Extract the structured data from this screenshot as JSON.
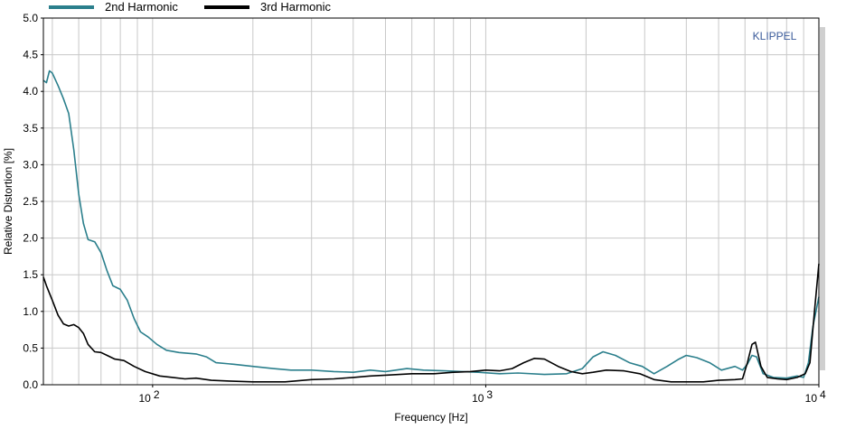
{
  "chart_data": {
    "type": "line",
    "title": "",
    "xlabel": "Frequency  [Hz]",
    "ylabel": "Relative Distortion  [%]",
    "x_scale": "log",
    "xlim": [
      47,
      10000
    ],
    "ylim": [
      0,
      5
    ],
    "grid": true,
    "legend_position": "top-left",
    "watermark": "KLIPPEL",
    "watermark_color": "#3A5A9A",
    "y_ticks": [
      "0.0",
      "0.5",
      "1.0",
      "1.5",
      "2.0",
      "2.5",
      "3.0",
      "3.5",
      "4.0",
      "4.5",
      "5.0"
    ],
    "x_ticks": [
      {
        "base": "10",
        "exp": "2"
      },
      {
        "base": "10",
        "exp": "3"
      },
      {
        "base": "10",
        "exp": "4"
      }
    ],
    "series": [
      {
        "name": "2nd Harmonic",
        "color": "#2B7F8C",
        "points": [
          [
            47,
            4.15
          ],
          [
            48,
            4.12
          ],
          [
            49,
            4.28
          ],
          [
            50,
            4.25
          ],
          [
            52,
            4.08
          ],
          [
            54,
            3.9
          ],
          [
            56,
            3.7
          ],
          [
            58,
            3.2
          ],
          [
            60,
            2.6
          ],
          [
            62,
            2.2
          ],
          [
            64,
            1.98
          ],
          [
            67,
            1.95
          ],
          [
            70,
            1.8
          ],
          [
            73,
            1.55
          ],
          [
            76,
            1.35
          ],
          [
            80,
            1.3
          ],
          [
            84,
            1.15
          ],
          [
            88,
            0.9
          ],
          [
            92,
            0.72
          ],
          [
            97,
            0.65
          ],
          [
            103,
            0.55
          ],
          [
            110,
            0.47
          ],
          [
            120,
            0.44
          ],
          [
            135,
            0.42
          ],
          [
            145,
            0.38
          ],
          [
            155,
            0.3
          ],
          [
            175,
            0.28
          ],
          [
            200,
            0.25
          ],
          [
            230,
            0.22
          ],
          [
            260,
            0.2
          ],
          [
            300,
            0.2
          ],
          [
            350,
            0.18
          ],
          [
            400,
            0.17
          ],
          [
            450,
            0.2
          ],
          [
            500,
            0.18
          ],
          [
            580,
            0.22
          ],
          [
            650,
            0.2
          ],
          [
            750,
            0.19
          ],
          [
            850,
            0.18
          ],
          [
            950,
            0.17
          ],
          [
            1100,
            0.15
          ],
          [
            1250,
            0.16
          ],
          [
            1500,
            0.14
          ],
          [
            1750,
            0.15
          ],
          [
            1950,
            0.22
          ],
          [
            2100,
            0.38
          ],
          [
            2250,
            0.45
          ],
          [
            2450,
            0.4
          ],
          [
            2700,
            0.3
          ],
          [
            2950,
            0.25
          ],
          [
            3200,
            0.15
          ],
          [
            3500,
            0.25
          ],
          [
            3800,
            0.35
          ],
          [
            4000,
            0.4
          ],
          [
            4300,
            0.37
          ],
          [
            4700,
            0.3
          ],
          [
            5100,
            0.2
          ],
          [
            5600,
            0.25
          ],
          [
            5900,
            0.2
          ],
          [
            6100,
            0.28
          ],
          [
            6300,
            0.4
          ],
          [
            6500,
            0.38
          ],
          [
            6800,
            0.15
          ],
          [
            7300,
            0.1
          ],
          [
            8000,
            0.09
          ],
          [
            8600,
            0.12
          ],
          [
            9000,
            0.1
          ],
          [
            9300,
            0.3
          ],
          [
            9600,
            0.8
          ],
          [
            10000,
            1.2
          ]
        ]
      },
      {
        "name": "3rd Harmonic",
        "color": "#000000",
        "points": [
          [
            47,
            1.47
          ],
          [
            48,
            1.35
          ],
          [
            50,
            1.15
          ],
          [
            52,
            0.95
          ],
          [
            54,
            0.83
          ],
          [
            56,
            0.8
          ],
          [
            58,
            0.82
          ],
          [
            60,
            0.78
          ],
          [
            62,
            0.7
          ],
          [
            64,
            0.55
          ],
          [
            67,
            0.45
          ],
          [
            70,
            0.44
          ],
          [
            73,
            0.4
          ],
          [
            77,
            0.35
          ],
          [
            82,
            0.33
          ],
          [
            88,
            0.25
          ],
          [
            95,
            0.18
          ],
          [
            105,
            0.12
          ],
          [
            115,
            0.1
          ],
          [
            125,
            0.08
          ],
          [
            135,
            0.09
          ],
          [
            150,
            0.06
          ],
          [
            170,
            0.05
          ],
          [
            200,
            0.04
          ],
          [
            250,
            0.04
          ],
          [
            300,
            0.07
          ],
          [
            350,
            0.08
          ],
          [
            400,
            0.1
          ],
          [
            450,
            0.12
          ],
          [
            500,
            0.13
          ],
          [
            600,
            0.15
          ],
          [
            700,
            0.15
          ],
          [
            800,
            0.17
          ],
          [
            900,
            0.18
          ],
          [
            1000,
            0.2
          ],
          [
            1100,
            0.19
          ],
          [
            1200,
            0.22
          ],
          [
            1300,
            0.3
          ],
          [
            1400,
            0.36
          ],
          [
            1500,
            0.35
          ],
          [
            1650,
            0.25
          ],
          [
            1800,
            0.18
          ],
          [
            1950,
            0.15
          ],
          [
            2100,
            0.17
          ],
          [
            2300,
            0.2
          ],
          [
            2600,
            0.19
          ],
          [
            2900,
            0.15
          ],
          [
            3200,
            0.07
          ],
          [
            3600,
            0.04
          ],
          [
            4000,
            0.04
          ],
          [
            4500,
            0.04
          ],
          [
            5000,
            0.06
          ],
          [
            5600,
            0.07
          ],
          [
            5900,
            0.08
          ],
          [
            6100,
            0.3
          ],
          [
            6300,
            0.55
          ],
          [
            6450,
            0.58
          ],
          [
            6700,
            0.25
          ],
          [
            7000,
            0.1
          ],
          [
            7500,
            0.08
          ],
          [
            8000,
            0.07
          ],
          [
            8600,
            0.1
          ],
          [
            9100,
            0.15
          ],
          [
            9400,
            0.3
          ],
          [
            9700,
            1.0
          ],
          [
            10000,
            1.65
          ]
        ]
      }
    ]
  }
}
